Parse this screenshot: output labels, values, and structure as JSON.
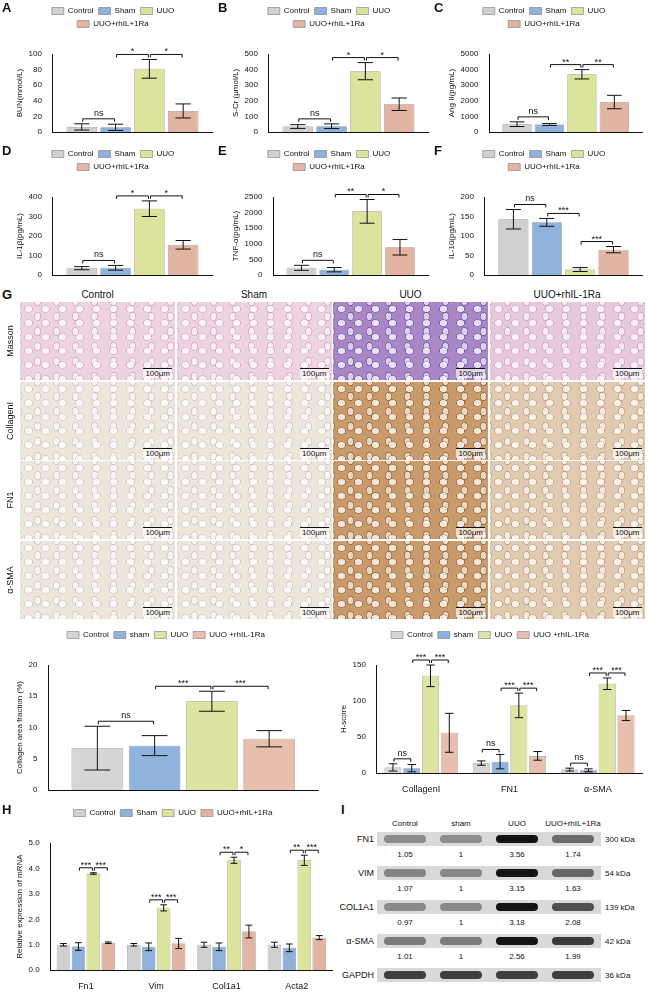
{
  "chart_data": [
    {
      "type": "bar",
      "panel": "A",
      "y_label": "BUN(mmol/L)",
      "categories": [
        null
      ],
      "tick_labels": "y",
      "grid": false,
      "legend": "top",
      "ylim": [
        0,
        100
      ],
      "yticks": [
        0,
        20,
        40,
        60,
        80,
        100
      ],
      "series": [
        {
          "name": "Control",
          "color": "#d0d0d0",
          "values": [
            6.5
          ],
          "errors": [
            4
          ]
        },
        {
          "name": "Sham",
          "color": "#8fb2da",
          "values": [
            6
          ],
          "errors": [
            4
          ]
        },
        {
          "name": "UUO",
          "color": "#dbe39c",
          "values": [
            81
          ],
          "errors": [
            12
          ]
        },
        {
          "name": "UUO+rhIL+1Ra",
          "color": "#e2b5a3",
          "values": [
            27
          ],
          "errors": [
            9
          ]
        }
      ],
      "annotations": [
        {
          "from": 0,
          "to": 1,
          "text": "ns"
        },
        {
          "from": 1,
          "to": 2,
          "text": "*"
        },
        {
          "from": 2,
          "to": 3,
          "text": "*"
        }
      ]
    },
    {
      "type": "bar",
      "panel": "B",
      "y_label": "S-Cr (μmol/L)",
      "categories": [
        null
      ],
      "tick_labels": "y",
      "grid": false,
      "legend": "top",
      "ylim": [
        0,
        500
      ],
      "yticks": [
        0,
        100,
        200,
        300,
        400,
        500
      ],
      "series": [
        {
          "name": "Control",
          "color": "#d0d0d0",
          "values": [
            35
          ],
          "errors": [
            12
          ]
        },
        {
          "name": "Sham",
          "color": "#8fb2da",
          "values": [
            37
          ],
          "errors": [
            15
          ]
        },
        {
          "name": "UUO",
          "color": "#dbe39c",
          "values": [
            390
          ],
          "errors": [
            55
          ]
        },
        {
          "name": "UUO+rhIL+1Ra",
          "color": "#e2b5a3",
          "values": [
            178
          ],
          "errors": [
            40
          ]
        }
      ],
      "annotations": [
        {
          "from": 0,
          "to": 1,
          "text": "ns"
        },
        {
          "from": 1,
          "to": 2,
          "text": "*"
        },
        {
          "from": 2,
          "to": 3,
          "text": "*"
        }
      ]
    },
    {
      "type": "bar",
      "panel": "C",
      "y_label": "Ang II(pg/mL)",
      "categories": [
        null
      ],
      "tick_labels": "y",
      "grid": false,
      "legend": "top",
      "ylim": [
        0,
        5000
      ],
      "yticks": [
        0,
        1000,
        2000,
        3000,
        4000,
        5000
      ],
      "series": [
        {
          "name": "Control",
          "color": "#d0d0d0",
          "values": [
            500
          ],
          "errors": [
            150
          ]
        },
        {
          "name": "Sham",
          "color": "#8fb2da",
          "values": [
            480
          ],
          "errors": [
            60
          ]
        },
        {
          "name": "UUO",
          "color": "#dbe39c",
          "values": [
            3700
          ],
          "errors": [
            300
          ]
        },
        {
          "name": "UUO+rhIL+1Ra",
          "color": "#e2b5a3",
          "values": [
            1920
          ],
          "errors": [
            430
          ]
        }
      ],
      "annotations": [
        {
          "from": 0,
          "to": 1,
          "text": "ns"
        },
        {
          "from": 1,
          "to": 2,
          "text": "**"
        },
        {
          "from": 2,
          "to": 3,
          "text": "**"
        }
      ]
    },
    {
      "type": "bar",
      "panel": "D",
      "y_label": "IL-1β(pg/mL)",
      "categories": [
        null
      ],
      "tick_labels": "y",
      "grid": false,
      "legend": "top",
      "ylim": [
        0,
        400
      ],
      "yticks": [
        0,
        100,
        200,
        300,
        400
      ],
      "series": [
        {
          "name": "Control",
          "color": "#d0d0d0",
          "values": [
            35
          ],
          "errors": [
            8
          ]
        },
        {
          "name": "Sham",
          "color": "#8fb2da",
          "values": [
            37
          ],
          "errors": [
            12
          ]
        },
        {
          "name": "UUO",
          "color": "#dbe39c",
          "values": [
            340
          ],
          "errors": [
            40
          ]
        },
        {
          "name": "UUO+rhIL+1Ra",
          "color": "#e2b5a3",
          "values": [
            155
          ],
          "errors": [
            22
          ]
        }
      ],
      "annotations": [
        {
          "from": 0,
          "to": 1,
          "text": "ns"
        },
        {
          "from": 1,
          "to": 2,
          "text": "*"
        },
        {
          "from": 2,
          "to": 3,
          "text": "*"
        }
      ]
    },
    {
      "type": "bar",
      "panel": "E",
      "y_label": "TNF-α(pg/mL)",
      "categories": [
        null
      ],
      "tick_labels": "y",
      "grid": false,
      "legend": "top",
      "ylim": [
        0,
        2500
      ],
      "yticks": [
        0,
        500,
        1000,
        1500,
        2000,
        2500
      ],
      "series": [
        {
          "name": "Control",
          "color": "#d0d0d0",
          "values": [
            230
          ],
          "errors": [
            80
          ]
        },
        {
          "name": "Sham",
          "color": "#8fb2da",
          "values": [
            170
          ],
          "errors": [
            70
          ]
        },
        {
          "name": "UUO",
          "color": "#dbe39c",
          "values": [
            2040
          ],
          "errors": [
            380
          ]
        },
        {
          "name": "UUO+rhIL+1Ra",
          "color": "#e2b5a3",
          "values": [
            890
          ],
          "errors": [
            250
          ]
        }
      ],
      "annotations": [
        {
          "from": 0,
          "to": 1,
          "text": "ns"
        },
        {
          "from": 1,
          "to": 2,
          "text": "**"
        },
        {
          "from": 2,
          "to": 3,
          "text": "*"
        }
      ]
    },
    {
      "type": "bar",
      "panel": "F",
      "y_label": "IL-10(pg/mL)",
      "categories": [
        null
      ],
      "tick_labels": "y",
      "grid": false,
      "legend": "top",
      "ylim": [
        0,
        200
      ],
      "yticks": [
        0,
        50,
        100,
        150,
        200
      ],
      "series": [
        {
          "name": "Control",
          "color": "#d0d0d0",
          "values": [
            143
          ],
          "errors": [
            25
          ]
        },
        {
          "name": "Sham",
          "color": "#8fb2da",
          "values": [
            135
          ],
          "errors": [
            10
          ]
        },
        {
          "name": "UUO",
          "color": "#dbe39c",
          "values": [
            14
          ],
          "errors": [
            5
          ]
        },
        {
          "name": "UUO+rhIL+1Ra",
          "color": "#e2b5a3",
          "values": [
            65
          ],
          "errors": [
            8
          ]
        }
      ],
      "annotations": [
        {
          "from": 0,
          "to": 1,
          "text": "ns"
        },
        {
          "from": 1,
          "to": 2,
          "text": "***"
        },
        {
          "from": 2,
          "to": 3,
          "text": "***"
        }
      ]
    },
    {
      "type": "bar",
      "y_label": "Collagen area fraction (%)",
      "categories": [
        null
      ],
      "tick_labels": "y",
      "grid": false,
      "legend": "top",
      "ylim": [
        0,
        20
      ],
      "yticks": [
        0,
        5,
        10,
        15,
        20
      ],
      "series": [
        {
          "name": "Control",
          "color": "#d6d6d6",
          "values": [
            6.7
          ],
          "errors": [
            3.5
          ]
        },
        {
          "name": "sham",
          "color": "#8fb3dc",
          "values": [
            7.1
          ],
          "errors": [
            1.6
          ]
        },
        {
          "name": "UUO",
          "color": "#dde3a0",
          "values": [
            14.2
          ],
          "errors": [
            1.6
          ]
        },
        {
          "name": "UUO +rhIL-1Ra",
          "color": "#e8bfae",
          "values": [
            8.2
          ],
          "errors": [
            1.3
          ]
        }
      ],
      "annotations": [
        {
          "from": 0,
          "to": 1,
          "text": "ns"
        },
        {
          "from": 1,
          "to": 2,
          "text": "***"
        },
        {
          "from": 2,
          "to": 3,
          "text": "***"
        }
      ]
    },
    {
      "type": "bar",
      "y_label": "H-score",
      "categories": [
        "CollagenI",
        "FN1",
        "α-SMA"
      ],
      "grid": false,
      "legend": "top",
      "ylim": [
        0,
        150
      ],
      "yticks": [
        0,
        50,
        100,
        150
      ],
      "series": [
        {
          "name": "Control",
          "color": "#d6d6d6",
          "values": [
            8,
            14,
            5
          ],
          "errors": [
            5,
            3,
            2
          ]
        },
        {
          "name": "sham",
          "color": "#8fb3dc",
          "values": [
            7,
            16,
            4
          ],
          "errors": [
            5,
            10,
            2
          ]
        },
        {
          "name": "UUO",
          "color": "#dde3a0",
          "values": [
            135,
            94,
            124
          ],
          "errors": [
            15,
            17,
            8
          ]
        },
        {
          "name": "UUO +rhIL-1Ra",
          "color": "#e8bfae",
          "values": [
            56,
            24,
            80
          ],
          "errors": [
            27,
            6,
            7
          ]
        }
      ],
      "annotations": [
        {
          "category": 0,
          "from": 0,
          "to": 1,
          "text": "ns"
        },
        {
          "category": 0,
          "from": 1,
          "to": 2,
          "text": "***"
        },
        {
          "category": 0,
          "from": 2,
          "to": 3,
          "text": "***"
        },
        {
          "category": 1,
          "from": 0,
          "to": 1,
          "text": "ns"
        },
        {
          "category": 1,
          "from": 1,
          "to": 2,
          "text": "***"
        },
        {
          "category": 1,
          "from": 2,
          "to": 3,
          "text": "***"
        },
        {
          "category": 2,
          "from": 0,
          "to": 1,
          "text": "ns"
        },
        {
          "category": 2,
          "from": 1,
          "to": 2,
          "text": "***"
        },
        {
          "category": 2,
          "from": 2,
          "to": 3,
          "text": "***"
        }
      ]
    },
    {
      "type": "bar",
      "panel": "H",
      "y_label": "Relative expression of mRNA",
      "categories": [
        "Fn1",
        "Vim",
        "Col1a1",
        "Acta2"
      ],
      "grid": false,
      "legend": "top",
      "ylim": [
        0,
        5
      ],
      "yticks": [
        {
          "value": 0,
          "label": "0.0"
        },
        {
          "value": 1,
          "label": "1.0"
        },
        {
          "value": 2,
          "label": "2.0"
        },
        {
          "value": 3,
          "label": "3.0"
        },
        {
          "value": 4,
          "label": "4.0"
        },
        {
          "value": 5,
          "label": "5.0"
        }
      ],
      "series": [
        {
          "name": "Control",
          "color": "#d0d0d0",
          "values": [
            1.0,
            1.0,
            1.0,
            1.0
          ],
          "errors": [
            0.05,
            0.05,
            0.1,
            0.1
          ]
        },
        {
          "name": "Sham",
          "color": "#8fb2da",
          "values": [
            0.93,
            0.92,
            0.92,
            0.88
          ],
          "errors": [
            0.15,
            0.15,
            0.15,
            0.15
          ]
        },
        {
          "name": "UUO",
          "color": "#dbe39c",
          "values": [
            3.8,
            2.45,
            4.32,
            4.32
          ],
          "errors": [
            0.03,
            0.12,
            0.12,
            0.2
          ]
        },
        {
          "name": "UUO+rhIL+1Ra",
          "color": "#e2b5a3",
          "values": [
            1.08,
            1.05,
            1.52,
            1.28
          ],
          "errors": [
            0.03,
            0.2,
            0.25,
            0.08
          ]
        }
      ],
      "annotations": [
        {
          "category": 0,
          "from": 1,
          "to": 2,
          "text": "***"
        },
        {
          "category": 0,
          "from": 2,
          "to": 3,
          "text": "***"
        },
        {
          "category": 1,
          "from": 1,
          "to": 2,
          "text": "***"
        },
        {
          "category": 1,
          "from": 2,
          "to": 3,
          "text": "***"
        },
        {
          "category": 2,
          "from": 1,
          "to": 2,
          "text": "**"
        },
        {
          "category": 2,
          "from": 2,
          "to": 3,
          "text": "*"
        },
        {
          "category": 3,
          "from": 1,
          "to": 2,
          "text": "**"
        },
        {
          "category": 3,
          "from": 2,
          "to": 3,
          "text": "***"
        }
      ]
    }
  ],
  "micrographs": {
    "panel": "G",
    "columns": [
      "Control",
      "Sham",
      "UUO",
      "UUO+rhIL-1Ra"
    ],
    "rows": [
      "Masson",
      "CollagenI",
      "FN1",
      "α-SMA"
    ],
    "scale_bar": "100μm"
  },
  "western_blot": {
    "panel": "I",
    "lanes": [
      "Control",
      "sham",
      "UUO",
      "UUO+rhIL+1Ra"
    ],
    "rows": [
      {
        "name": "FN1",
        "size": "300 kDa",
        "values": [
          1.05,
          1,
          3.56,
          1.74
        ]
      },
      {
        "name": "VIM",
        "size": "54 kDa",
        "values": [
          1.07,
          1,
          3.15,
          1.63
        ]
      },
      {
        "name": "COL1A1",
        "size": "139 kDa",
        "values": [
          0.97,
          1,
          3.18,
          2.08
        ]
      },
      {
        "name": "α-SMA",
        "size": "42 kDa",
        "values": [
          1.01,
          1,
          2.56,
          1.99
        ]
      },
      {
        "name": "GAPDH",
        "size": "36 kDa"
      }
    ]
  }
}
